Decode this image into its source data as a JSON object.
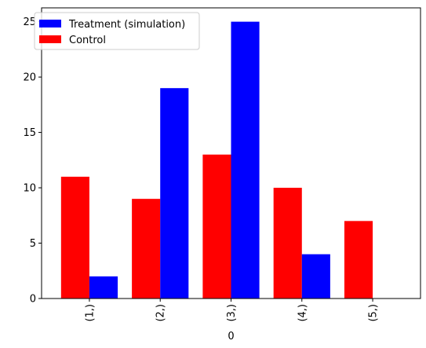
{
  "chart_data": {
    "type": "bar",
    "categories": [
      "(1,)",
      "(2,)",
      "(3,)",
      "(4,)",
      "(5,)"
    ],
    "series": [
      {
        "name": "Control",
        "color": "#ff0000",
        "values": [
          11,
          9,
          13,
          10,
          7
        ]
      },
      {
        "name": "Treatment (simulation)",
        "color": "#0000ff",
        "values": [
          2,
          19,
          25,
          4,
          0
        ]
      }
    ],
    "legend_order": [
      "Treatment (simulation)",
      "Control"
    ],
    "xlabel": "0",
    "ylabel": "",
    "ylim": [
      0,
      26.25
    ],
    "yticks": [
      0,
      5,
      10,
      15,
      20,
      25
    ],
    "grid": false,
    "legend_position": "top-left"
  }
}
